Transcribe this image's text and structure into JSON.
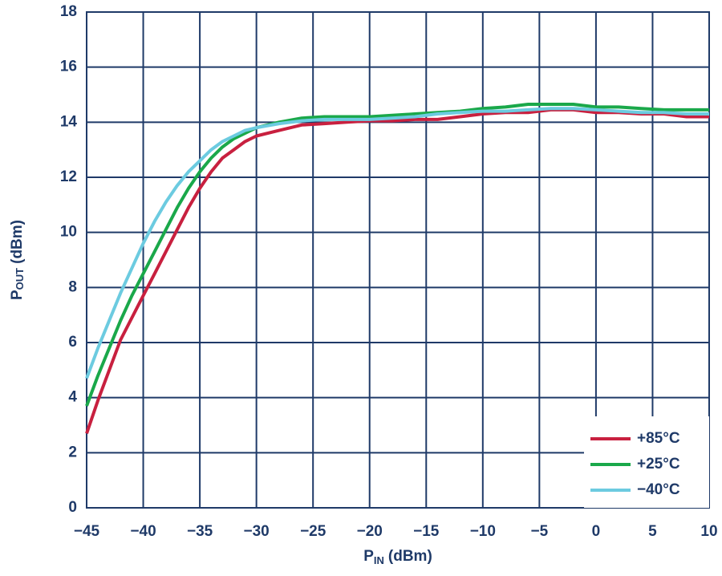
{
  "chart_data": {
    "type": "line",
    "ylabel": "P",
    "ylabel_sub": "OUT",
    "ylabel_unit": "(dBm)",
    "xlabel": "P",
    "xlabel_sub": "IN",
    "xlabel_unit": "(dBm)",
    "x": [
      -45,
      -44,
      -43,
      -42,
      -41,
      -40,
      -39,
      -38,
      -37,
      -36,
      -35,
      -34,
      -33,
      -32,
      -31,
      -30,
      -28,
      -26,
      -24,
      -22,
      -20,
      -18,
      -16,
      -14,
      -12,
      -10,
      -8,
      -6,
      -4,
      -2,
      0,
      2,
      4,
      6,
      8,
      10
    ],
    "series": [
      {
        "name": "+85°C",
        "color": "#c8203f",
        "values": [
          2.7,
          3.9,
          5.0,
          6.1,
          6.9,
          7.7,
          8.5,
          9.3,
          10.1,
          10.9,
          11.6,
          12.2,
          12.7,
          13.0,
          13.3,
          13.5,
          13.7,
          13.9,
          13.95,
          14.0,
          14.05,
          14.05,
          14.1,
          14.1,
          14.2,
          14.3,
          14.35,
          14.35,
          14.45,
          14.45,
          14.35,
          14.35,
          14.3,
          14.3,
          14.2,
          14.2
        ]
      },
      {
        "name": "+25°C",
        "color": "#1aa84a",
        "values": [
          3.7,
          4.8,
          5.8,
          6.8,
          7.7,
          8.5,
          9.3,
          10.1,
          10.9,
          11.6,
          12.2,
          12.7,
          13.1,
          13.4,
          13.6,
          13.8,
          14.0,
          14.15,
          14.2,
          14.2,
          14.2,
          14.25,
          14.3,
          14.35,
          14.4,
          14.5,
          14.55,
          14.65,
          14.65,
          14.65,
          14.55,
          14.55,
          14.5,
          14.45,
          14.45,
          14.45
        ]
      },
      {
        "name": "−40°C",
        "color": "#6ccbe0",
        "values": [
          4.7,
          5.8,
          6.8,
          7.8,
          8.7,
          9.6,
          10.4,
          11.1,
          11.7,
          12.2,
          12.6,
          13.0,
          13.3,
          13.5,
          13.7,
          13.8,
          13.95,
          14.05,
          14.1,
          14.1,
          14.1,
          14.15,
          14.2,
          14.3,
          14.35,
          14.4,
          14.4,
          14.45,
          14.5,
          14.5,
          14.45,
          14.4,
          14.35,
          14.35,
          14.3,
          14.3
        ]
      }
    ],
    "xlim": [
      -45,
      10
    ],
    "xticks": [
      {
        "value": -45,
        "label": "−45"
      },
      {
        "value": -40,
        "label": "−40"
      },
      {
        "value": -35,
        "label": "−35"
      },
      {
        "value": -30,
        "label": "−30"
      },
      {
        "value": -25,
        "label": "−25"
      },
      {
        "value": -20,
        "label": "−20"
      },
      {
        "value": -15,
        "label": "−15"
      },
      {
        "value": -10,
        "label": "−10"
      },
      {
        "value": -5,
        "label": "−5"
      },
      0,
      5,
      10
    ],
    "ylim": [
      0,
      18
    ],
    "yticks": [
      0,
      2,
      4,
      6,
      8,
      10,
      12,
      14,
      16,
      18
    ],
    "grid": true,
    "grid_color": "#1f3a68",
    "legend": "lower right"
  }
}
